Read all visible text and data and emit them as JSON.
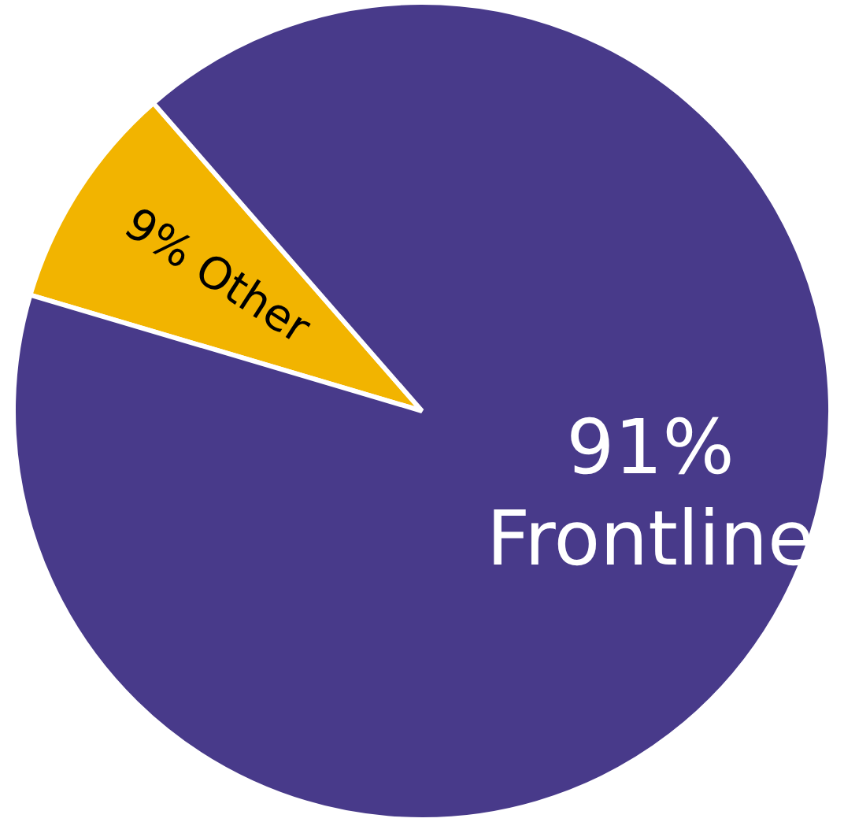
{
  "chart_data": {
    "type": "pie",
    "categories": [
      "Other",
      "Frontline"
    ],
    "values": [
      9,
      91
    ],
    "value_labels": [
      "9%",
      "91%"
    ],
    "colors": [
      "#f2b400",
      "#483a8a"
    ],
    "legend": false
  }
}
